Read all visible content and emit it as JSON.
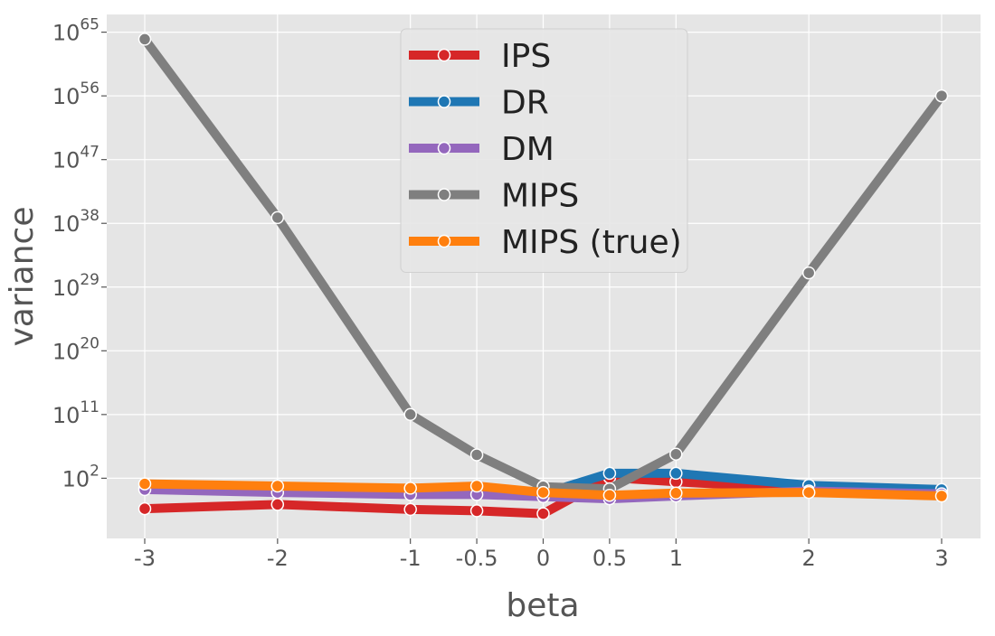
{
  "chart_data": {
    "type": "line",
    "xlabel": "beta",
    "ylabel": "variance",
    "x_scale": "categorical",
    "categories": [
      "-3",
      "-2",
      "-1",
      "-0.5",
      "0",
      "0.5",
      "1",
      "2",
      "3"
    ],
    "x_positions": [
      -3,
      -2,
      -1,
      -0.5,
      0,
      0.5,
      1,
      2,
      3
    ],
    "y_scale": "log10",
    "ylim_log10": [
      -6.5,
      67.5
    ],
    "y_ticks": [
      {
        "base": "10",
        "exp": "2",
        "value_log10": 2
      },
      {
        "base": "10",
        "exp": "11",
        "value_log10": 11
      },
      {
        "base": "10",
        "exp": "20",
        "value_log10": 20
      },
      {
        "base": "10",
        "exp": "29",
        "value_log10": 29
      },
      {
        "base": "10",
        "exp": "38",
        "value_log10": 38
      },
      {
        "base": "10",
        "exp": "47",
        "value_log10": 47
      },
      {
        "base": "10",
        "exp": "56",
        "value_log10": 56
      },
      {
        "base": "10",
        "exp": "65",
        "value_log10": 65
      }
    ],
    "series": [
      {
        "name": "IPS",
        "color": "#d62728",
        "values_log10": [
          -2.3,
          -1.7,
          -2.4,
          -2.6,
          -3.0,
          2.1,
          1.5,
          0.5,
          -0.2
        ]
      },
      {
        "name": "DR",
        "color": "#1f77b4",
        "values_log10": [
          0.6,
          0.5,
          0.2,
          0.2,
          -0.2,
          2.7,
          2.7,
          1.0,
          0.4
        ]
      },
      {
        "name": "DM",
        "color": "#9467bd",
        "values_log10": [
          0.4,
          0.0,
          -0.3,
          -0.3,
          -0.6,
          -0.9,
          -0.5,
          0.2,
          -0.2
        ]
      },
      {
        "name": "MIPS",
        "color": "#7f7f7f",
        "values_log10": [
          64.0,
          38.8,
          11.0,
          5.3,
          0.8,
          0.5,
          5.4,
          31.0,
          56.0
        ]
      },
      {
        "name": "MIPS (true)",
        "color": "#ff7f0e",
        "values_log10": [
          1.2,
          0.9,
          0.6,
          0.9,
          0.0,
          -0.4,
          -0.1,
          0.0,
          -0.5
        ]
      }
    ],
    "grid": true,
    "legend_position": "top-center",
    "background_color": "#e5e5e5",
    "grid_color": "#ffffff"
  }
}
